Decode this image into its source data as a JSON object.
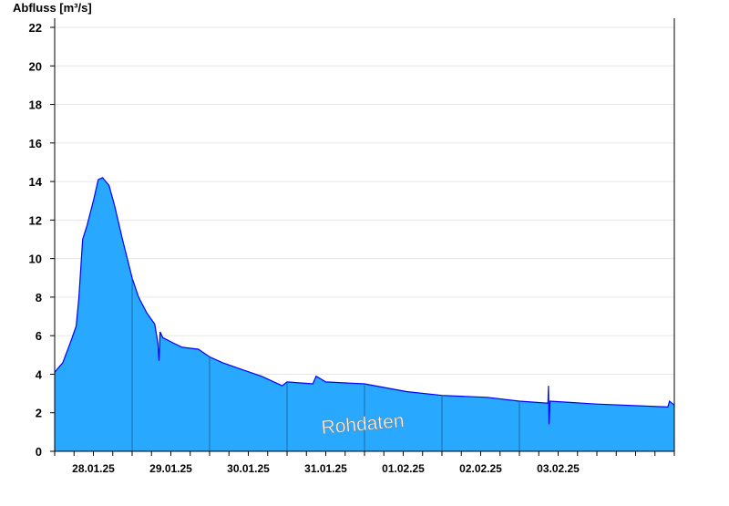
{
  "chart_data": {
    "type": "area",
    "ylabel": "Abfluss [m³/s]",
    "ylim": [
      0,
      22
    ],
    "yticks": [
      0,
      2,
      4,
      6,
      8,
      10,
      12,
      14,
      16,
      18,
      20,
      22
    ],
    "xlim": [
      "2025-01-27T00:00",
      "2025-02-04T00:00"
    ],
    "xtick_labels": [
      "28.01.25",
      "29.01.25",
      "30.01.25",
      "31.01.25",
      "01.02.25",
      "02.02.25",
      "03.02.25"
    ],
    "grid": true,
    "watermark": "Rohdaten",
    "colors": {
      "fill": "#29a8ff",
      "line": "#0000ff",
      "grid": "#e6e6e6",
      "axis": "#000000"
    },
    "points": [
      [
        "2025-01-27T00:00",
        4.1
      ],
      [
        "2025-01-27T02:30",
        4.6
      ],
      [
        "2025-01-27T05:00",
        5.7
      ],
      [
        "2025-01-27T06:40",
        6.5
      ],
      [
        "2025-01-27T07:30",
        8.0
      ],
      [
        "2025-01-27T08:40",
        11.0
      ],
      [
        "2025-01-27T10:00",
        11.7
      ],
      [
        "2025-01-27T12:00",
        13.0
      ],
      [
        "2025-01-27T13:30",
        14.1
      ],
      [
        "2025-01-27T14:50",
        14.2
      ],
      [
        "2025-01-27T16:50",
        13.8
      ],
      [
        "2025-01-27T18:30",
        12.8
      ],
      [
        "2025-01-27T21:00",
        11.0
      ],
      [
        "2025-01-28T00:00",
        9.0
      ],
      [
        "2025-01-28T02:00",
        8.0
      ],
      [
        "2025-01-28T04:30",
        7.2
      ],
      [
        "2025-01-28T07:00",
        6.6
      ],
      [
        "2025-01-28T08:00",
        5.6
      ],
      [
        "2025-01-28T08:20",
        4.7
      ],
      [
        "2025-01-28T08:40",
        6.2
      ],
      [
        "2025-01-28T09:30",
        5.9
      ],
      [
        "2025-01-28T13:00",
        5.6
      ],
      [
        "2025-01-28T15:30",
        5.4
      ],
      [
        "2025-01-28T20:30",
        5.3
      ],
      [
        "2025-01-29T00:00",
        4.9
      ],
      [
        "2025-01-29T04:00",
        4.6
      ],
      [
        "2025-01-29T09:00",
        4.3
      ],
      [
        "2025-01-29T16:00",
        3.9
      ],
      [
        "2025-01-29T22:30",
        3.4
      ],
      [
        "2025-01-30T00:00",
        3.6
      ],
      [
        "2025-01-30T08:00",
        3.5
      ],
      [
        "2025-01-30T09:00",
        3.9
      ],
      [
        "2025-01-30T12:00",
        3.6
      ],
      [
        "2025-01-31T00:00",
        3.5
      ],
      [
        "2025-01-31T13:00",
        3.1
      ],
      [
        "2025-02-01T00:00",
        2.9
      ],
      [
        "2025-02-01T14:00",
        2.8
      ],
      [
        "2025-02-02T00:00",
        2.6
      ],
      [
        "2025-02-02T08:50",
        2.5
      ],
      [
        "2025-02-02T09:00",
        3.4
      ],
      [
        "2025-02-02T09:10",
        1.4
      ],
      [
        "2025-02-02T09:30",
        2.6
      ],
      [
        "2025-02-03T00:00",
        2.45
      ],
      [
        "2025-02-03T22:00",
        2.3
      ],
      [
        "2025-02-03T22:30",
        2.6
      ],
      [
        "2025-02-04T00:00",
        2.4
      ]
    ]
  }
}
